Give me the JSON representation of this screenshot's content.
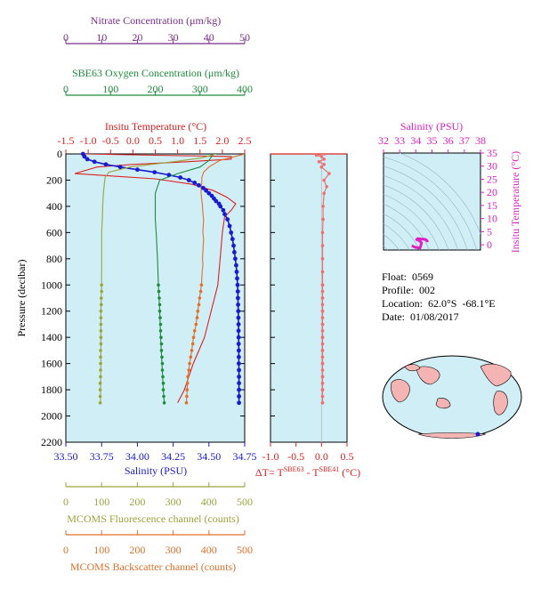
{
  "colors": {
    "temperature": "#e02020",
    "salinity": "#1a1ad0",
    "oxygen": "#1e8c3c",
    "nitrate": "#7b2d8c",
    "fluorescence": "#9aa53a",
    "backscatter": "#e0702a",
    "ts_diagram": "#e01fc8",
    "panel_bg": "#cfeef6",
    "land": "#f4b4b4"
  },
  "float_info": {
    "float": "Float:  0569",
    "profile": "Profile:  002",
    "location": "Location:  62.0°S  -68.1°E",
    "date": "Date:  01/08/2017"
  },
  "chart_data": [
    {
      "type": "line",
      "panel": "main-profiles",
      "ylabel": "Pressure (decibar)",
      "ylim": [
        2200,
        0
      ],
      "yticks": [
        "0",
        "200",
        "400",
        "600",
        "800",
        "1000",
        "1200",
        "1400",
        "1600",
        "1800",
        "2000",
        "2200"
      ],
      "axes": {
        "nitrate": {
          "label": "Nitrate Concentration (μm/kg)",
          "range": [
            0,
            50
          ],
          "ticks": [
            "0",
            "10",
            "20",
            "30",
            "40",
            "50"
          ]
        },
        "oxygen": {
          "label": "SBE63 Oxygen Concentration (μm/kg)",
          "range": [
            0,
            400
          ],
          "ticks": [
            "0",
            "100",
            "200",
            "300",
            "400"
          ]
        },
        "temperature": {
          "label": "Insitu Temperature (°C)",
          "range": [
            -1.5,
            2.5
          ],
          "ticks": [
            "-1.5",
            "-1.0",
            "-0.5",
            "0.0",
            "0.5",
            "1.0",
            "1.5",
            "2.0",
            "2.5"
          ]
        },
        "salinity": {
          "label": "Salinity (PSU)",
          "range": [
            33.5,
            34.75
          ],
          "ticks": [
            "33.50",
            "33.75",
            "34.00",
            "34.25",
            "34.50",
            "34.75"
          ]
        },
        "fluorescence": {
          "label": "MCOMS Fluorescence channel (counts)",
          "range": [
            0,
            500
          ],
          "ticks": [
            "0",
            "100",
            "200",
            "300",
            "400",
            "500"
          ]
        },
        "backscatter": {
          "label": "MCOMS Backscatter channel (counts)",
          "range": [
            0,
            500
          ],
          "ticks": [
            "0",
            "100",
            "200",
            "300",
            "400",
            "500"
          ]
        }
      },
      "series": [
        {
          "key": "temperature",
          "axis": "temperature",
          "style": "line",
          "pressure": [
            0,
            10,
            20,
            40,
            60,
            80,
            100,
            150,
            190,
            230,
            280,
            330,
            380,
            430,
            480,
            600,
            800,
            1000,
            1200,
            1400,
            1600,
            1800,
            1900
          ],
          "values": [
            -1.1,
            0.5,
            2.2,
            2.2,
            1.2,
            0.0,
            -0.8,
            -1.3,
            0.5,
            1.3,
            1.8,
            2.1,
            2.3,
            2.2,
            2.05,
            2.0,
            1.95,
            1.9,
            1.75,
            1.6,
            1.35,
            1.15,
            1.0
          ]
        },
        {
          "key": "salinity",
          "axis": "salinity",
          "style": "line+points",
          "pressure": [
            0,
            20,
            40,
            60,
            80,
            100,
            120,
            140,
            160,
            180,
            200,
            220,
            240,
            260,
            280,
            300,
            320,
            340,
            360,
            380,
            400,
            430,
            460,
            500,
            550,
            600,
            650,
            700,
            750,
            800,
            850,
            900,
            950,
            1000,
            1050,
            1100,
            1150,
            1200,
            1250,
            1300,
            1350,
            1400,
            1450,
            1500,
            1550,
            1600,
            1650,
            1700,
            1750,
            1800,
            1850,
            1900
          ],
          "values": [
            33.62,
            33.63,
            33.65,
            33.7,
            33.78,
            33.88,
            34.0,
            34.12,
            34.22,
            34.3,
            34.36,
            34.4,
            34.43,
            34.46,
            34.48,
            34.5,
            34.52,
            34.535,
            34.55,
            34.57,
            34.58,
            34.6,
            34.61,
            34.63,
            34.645,
            34.655,
            34.665,
            34.672,
            34.678,
            34.684,
            34.69,
            34.694,
            34.697,
            34.7,
            34.702,
            34.703,
            34.704,
            34.705,
            34.706,
            34.707,
            34.707,
            34.708,
            34.708,
            34.709,
            34.709,
            34.709,
            34.71,
            34.71,
            34.71,
            34.71,
            34.71,
            34.71
          ]
        },
        {
          "key": "oxygen",
          "axis": "oxygen",
          "style": "line",
          "pressure": [
            0,
            50,
            100,
            150,
            200,
            300,
            400,
            500,
            600,
            800,
            1000,
            1200,
            1400,
            1600,
            1800,
            1900
          ],
          "values": [
            330,
            320,
            300,
            250,
            210,
            200,
            200,
            200,
            202,
            205,
            207,
            210,
            212,
            215,
            218,
            220
          ]
        },
        {
          "key": "oxygen-bottle",
          "axis": "oxygen",
          "style": "points",
          "pressure": [
            1000,
            1050,
            1100,
            1150,
            1200,
            1250,
            1300,
            1350,
            1400,
            1450,
            1500,
            1550,
            1600,
            1650,
            1700,
            1750,
            1800,
            1850,
            1900
          ],
          "values": [
            207,
            208,
            209,
            210,
            210,
            211,
            212,
            212,
            213,
            214,
            214,
            215,
            216,
            216,
            217,
            218,
            218,
            219,
            220
          ]
        },
        {
          "key": "fluorescence",
          "axis": "fluorescence",
          "style": "line",
          "pressure": [
            0,
            30,
            60,
            100,
            140,
            180,
            220,
            300,
            400,
            500,
            600,
            700,
            800,
            900,
            1000,
            1200,
            1400,
            1600,
            1800,
            1900
          ],
          "values": [
            420,
            380,
            300,
            180,
            120,
            110,
            108,
            105,
            103,
            102,
            100,
            100,
            100,
            100,
            100,
            98,
            98,
            98,
            97,
            97
          ]
        },
        {
          "key": "fluorescence-points",
          "axis": "fluorescence",
          "style": "points",
          "pressure": [
            1000,
            1050,
            1100,
            1150,
            1200,
            1250,
            1300,
            1350,
            1400,
            1450,
            1500,
            1550,
            1600,
            1650,
            1700,
            1750,
            1800,
            1850,
            1900
          ],
          "values": [
            100,
            100,
            99,
            99,
            98,
            98,
            98,
            98,
            98,
            98,
            97,
            97,
            97,
            97,
            97,
            96,
            96,
            96,
            96
          ]
        },
        {
          "key": "backscatter",
          "axis": "backscatter",
          "style": "line",
          "pressure": [
            0,
            50,
            100,
            140,
            180,
            220,
            260,
            300,
            350,
            400,
            450,
            500,
            550,
            600,
            650,
            700,
            750,
            800,
            850,
            900,
            950,
            1000,
            1100,
            1200,
            1300,
            1400,
            1500,
            1600,
            1700,
            1800,
            1900
          ],
          "values": [
            500,
            430,
            400,
            385,
            380,
            380,
            378,
            378,
            380,
            382,
            383,
            385,
            384,
            383,
            385,
            384,
            383,
            382,
            383,
            381,
            380,
            379,
            374,
            369,
            364,
            357,
            352,
            346,
            341,
            339,
            337
          ]
        },
        {
          "key": "backscatter-points",
          "axis": "backscatter",
          "style": "points",
          "pressure": [
            1000,
            1050,
            1100,
            1150,
            1200,
            1250,
            1300,
            1350,
            1400,
            1450,
            1500,
            1550,
            1600,
            1650,
            1700,
            1750,
            1800,
            1850,
            1900
          ],
          "values": [
            379,
            377,
            374,
            372,
            369,
            367,
            364,
            360,
            357,
            355,
            352,
            349,
            346,
            344,
            341,
            340,
            339,
            338,
            337
          ]
        }
      ]
    },
    {
      "type": "line",
      "panel": "temperature-difference",
      "xlabel": "ΔT= T^SBE63 - T^SBE41 (°C)",
      "xlim": [
        -1.0,
        0.5
      ],
      "xticks": [
        "-1.0",
        "-0.5",
        "0.0",
        "0.5"
      ],
      "ylim": [
        2200,
        0
      ],
      "series": [
        {
          "key": "delta-t",
          "style": "line+points",
          "pressure": [
            0,
            10,
            20,
            40,
            60,
            80,
            100,
            150,
            200,
            250,
            300,
            400,
            500,
            600,
            700,
            800,
            900,
            1000,
            1100,
            1200,
            1300,
            1400,
            1500,
            1600,
            1700,
            1800,
            1900
          ],
          "values": [
            0.05,
            -0.1,
            0.0,
            0.05,
            -0.05,
            0.05,
            0.0,
            0.15,
            0.05,
            0.1,
            0.05,
            0.03,
            0.03,
            0.02,
            0.02,
            0.02,
            0.02,
            0.02,
            0.02,
            0.02,
            0.02,
            0.02,
            0.02,
            0.02,
            0.02,
            0.02,
            0.02
          ]
        },
        {
          "key": "delta-t-points",
          "style": "points",
          "pressure": [
            1000,
            1050,
            1100,
            1150,
            1200,
            1250,
            1300,
            1350,
            1400,
            1450,
            1500,
            1550,
            1600,
            1650,
            1700,
            1750,
            1800,
            1850,
            1900
          ],
          "values": [
            0.02,
            0.02,
            0.02,
            0.02,
            0.02,
            0.02,
            0.02,
            0.02,
            0.02,
            0.02,
            0.02,
            0.02,
            0.02,
            0.02,
            0.02,
            0.02,
            0.02,
            0.02,
            0.02
          ]
        }
      ]
    },
    {
      "type": "line",
      "panel": "ts-diagram",
      "xlabel": "Salinity (PSU)",
      "ylabel": "Insitu Temperature (°C)",
      "xlim": [
        32,
        38
      ],
      "ylim": [
        -2,
        35
      ],
      "xticks": [
        "32",
        "33",
        "34",
        "35",
        "36",
        "37",
        "38"
      ],
      "yticks": [
        "0",
        "5",
        "10",
        "15",
        "20",
        "25",
        "30",
        "35"
      ],
      "series": [
        {
          "key": "ts-curve",
          "salinity": [
            33.75,
            33.9,
            34.0,
            34.1,
            34.2,
            34.25,
            34.3,
            34.35,
            34.2,
            34.05,
            34.1,
            34.3,
            34.5,
            34.6,
            34.65,
            34.7,
            34.71
          ],
          "temperature": [
            -0.3,
            -0.8,
            -1.0,
            -1.1,
            -1.3,
            -1.3,
            -0.5,
            0.8,
            1.6,
            2.0,
            2.3,
            2.2,
            2.1,
            2.0,
            1.8,
            1.5,
            1.0
          ]
        }
      ]
    },
    {
      "type": "scatter",
      "panel": "location-map",
      "series": [
        {
          "key": "float-position",
          "lon": [
            -68.1
          ],
          "lat": [
            -62.0
          ]
        }
      ]
    }
  ]
}
